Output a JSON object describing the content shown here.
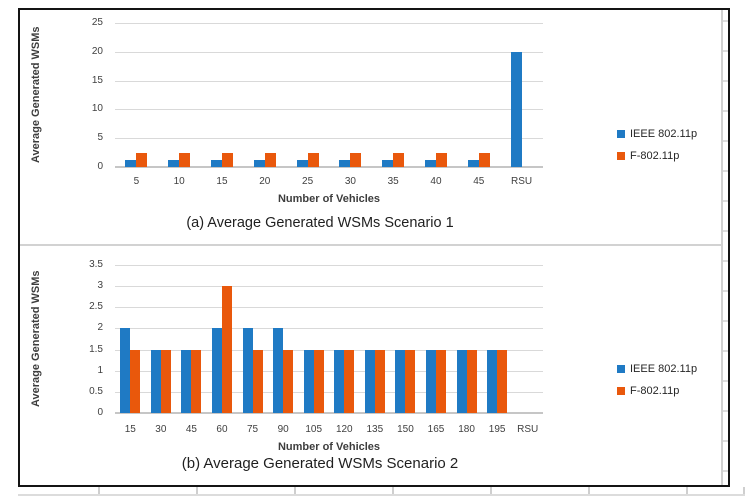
{
  "colors": {
    "series_blue": "#1F7AC4",
    "series_orange": "#E9580C",
    "gridline": "#D9D9D9",
    "axis_line": "#C6C6C6",
    "tick_text": "#404040",
    "caption_text": "#1F1F1F"
  },
  "chart_data": [
    {
      "type": "bar",
      "title": "(a) Average Generated WSMs Scenario 1",
      "xlabel": "Number of Vehicles",
      "ylabel": "Average Generated WSMs",
      "categories": [
        "5",
        "10",
        "15",
        "20",
        "25",
        "30",
        "35",
        "40",
        "45",
        "RSU"
      ],
      "yticks": [
        "0",
        "5",
        "10",
        "15",
        "20",
        "25"
      ],
      "ylim": [
        0,
        25
      ],
      "grid": true,
      "legend_position": "right",
      "series": [
        {
          "name": "IEEE 802.11p",
          "color": "#1F7AC4",
          "values": [
            1.2,
            1.2,
            1.2,
            1.2,
            1.2,
            1.2,
            1.2,
            1.2,
            1.2,
            20
          ]
        },
        {
          "name": "F-802.11p",
          "color": "#E9580C",
          "values": [
            2.5,
            2.5,
            2.5,
            2.5,
            2.5,
            2.5,
            2.5,
            2.5,
            2.5,
            0
          ]
        }
      ]
    },
    {
      "type": "bar",
      "title": "(b) Average Generated WSMs Scenario 2",
      "xlabel": "Number of Vehicles",
      "ylabel": "Average Generated WSMs",
      "categories": [
        "15",
        "30",
        "45",
        "60",
        "75",
        "90",
        "105",
        "120",
        "135",
        "150",
        "165",
        "180",
        "195",
        "RSU"
      ],
      "yticks": [
        "0",
        "0.5",
        "1",
        "1.5",
        "2",
        "2.5",
        "3",
        "3.5"
      ],
      "ylim": [
        0,
        3.5
      ],
      "grid": true,
      "legend_position": "right",
      "series": [
        {
          "name": "IEEE 802.11p",
          "color": "#1F7AC4",
          "values": [
            2,
            1.5,
            1.5,
            2,
            2,
            2,
            1.5,
            1.5,
            1.5,
            1.5,
            1.5,
            1.5,
            1.5,
            0
          ]
        },
        {
          "name": "F-802.11p",
          "color": "#E9580C",
          "values": [
            1.5,
            1.5,
            1.5,
            3,
            1.5,
            1.5,
            1.5,
            1.5,
            1.5,
            1.5,
            1.5,
            1.5,
            1.5,
            0
          ]
        }
      ]
    }
  ]
}
